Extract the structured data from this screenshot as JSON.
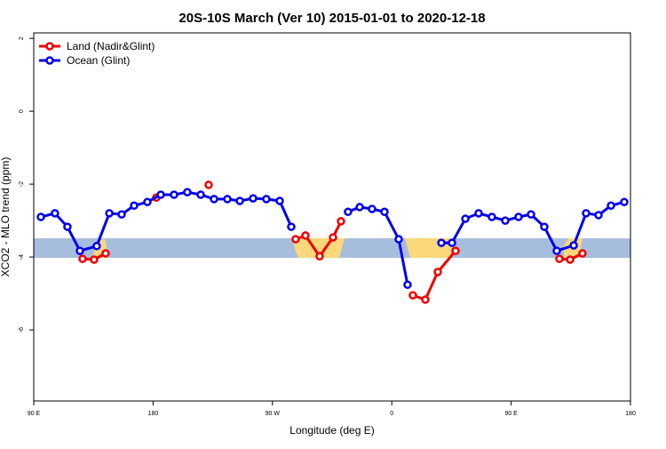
{
  "chart_data": {
    "type": "line",
    "title": "20S-10S March (Ver 10)   2015-01-01 to 2020-12-18",
    "x_label": "Longitude (deg E)",
    "y_label": "XCO2 - MLO trend (ppm)",
    "xlim": [
      90,
      540
    ],
    "xticks": [
      {
        "value": 90,
        "label": "90 E"
      },
      180,
      {
        "value": 270,
        "label": "90 W"
      },
      {
        "value": 360,
        "label": "0"
      },
      {
        "value": 450,
        "label": "90 E"
      },
      {
        "value": 540,
        "label": "180"
      }
    ],
    "ylim": [
      -7.95,
      2.15
    ],
    "yticks": [
      -6,
      -4,
      -2,
      0,
      2
    ],
    "legend": "top-left",
    "series": [
      {
        "name": "Land (Nadir&Glint)",
        "color": "#ee0000",
        "x": [
          126.8,
          135.5,
          144.2,
          null,
          182.4,
          null,
          221.9,
          null,
          287.5,
          294.9,
          305.6,
          315.7,
          321.7,
          null,
          375.9,
          385.3,
          394.7,
          408.1,
          null,
          486.4,
          494.5,
          503.8
        ],
        "values": [
          -4.05,
          -4.07,
          -3.9,
          null,
          -2.37,
          null,
          -2.02,
          null,
          -3.51,
          -3.41,
          -3.98,
          -3.46,
          -3.02,
          null,
          -5.05,
          -5.17,
          -4.41,
          -3.83,
          null,
          -4.05,
          -4.07,
          -3.9
        ]
      },
      {
        "name": "Ocean (Glint)",
        "color": "#0000ee",
        "x": [
          95.4,
          106,
          115.4,
          124.8,
          137.5,
          147,
          156.3,
          165.7,
          175.7,
          185.8,
          195.8,
          205.8,
          215.9,
          226,
          236,
          245.4,
          255.4,
          265.4,
          275.5,
          284.2,
          null,
          327,
          335.8,
          345.1,
          354.5,
          365.2,
          371.9,
          null,
          397.4,
          405.4,
          415.5,
          425.5,
          435.5,
          445.6,
          455.6,
          465,
          475,
          484.4,
          497.2,
          506.5,
          515.9,
          525.3,
          535.3
        ],
        "values": [
          -2.9,
          -2.8,
          -3.17,
          -3.83,
          -3.7,
          -2.8,
          -2.83,
          -2.59,
          -2.49,
          -2.29,
          -2.29,
          -2.22,
          -2.29,
          -2.41,
          -2.41,
          -2.46,
          -2.39,
          -2.41,
          -2.46,
          -3.17,
          null,
          -2.76,
          -2.63,
          -2.68,
          -2.76,
          -3.51,
          -4.76,
          null,
          -3.61,
          -3.61,
          -2.95,
          -2.8,
          -2.9,
          -3.0,
          -2.9,
          -2.83,
          -3.17,
          -3.83,
          -3.68,
          -2.8,
          -2.85,
          -2.59,
          -2.49
        ]
      }
    ]
  }
}
